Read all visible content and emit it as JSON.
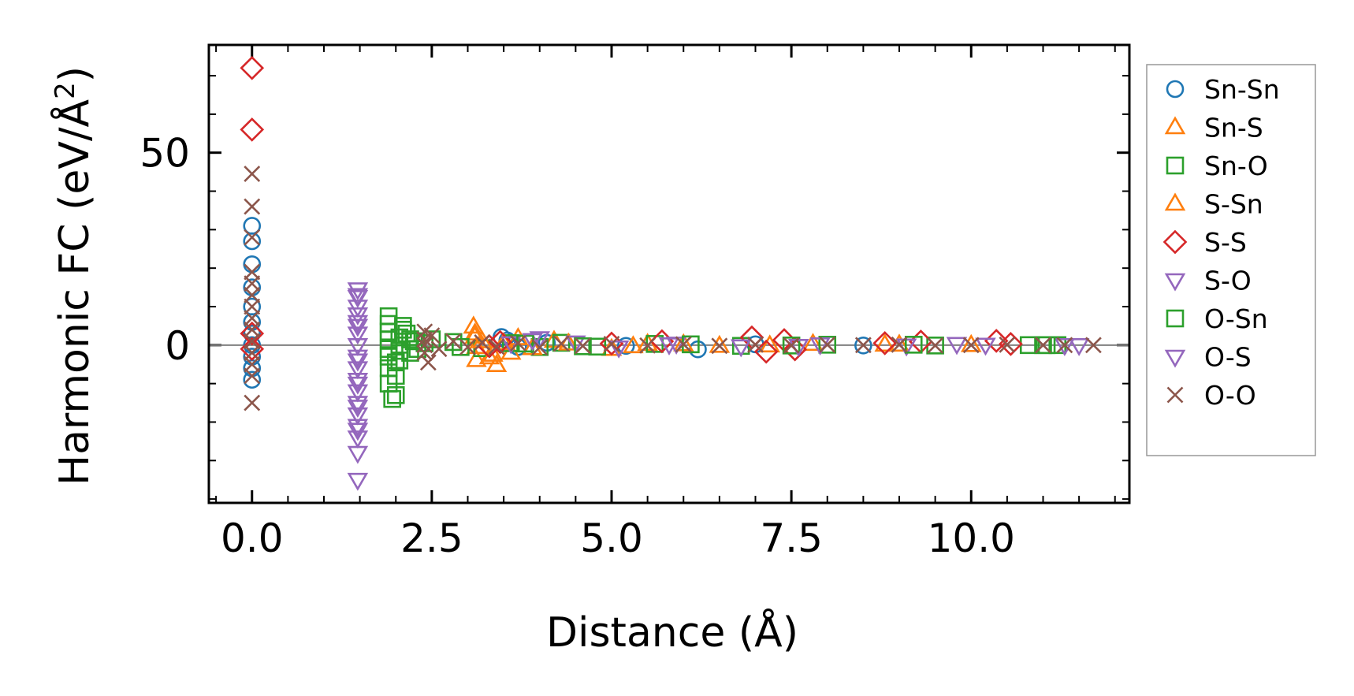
{
  "chart_data": {
    "type": "scatter",
    "title": "",
    "xlabel": "Distance (Å)",
    "ylabel": "Harmonic FC (eV/Å",
    "ylabel_sup": "2",
    "ylabel_close": ")",
    "xlim": [
      -0.6,
      12.2
    ],
    "ylim": [
      -41,
      78
    ],
    "xticks": [
      0.0,
      2.5,
      5.0,
      7.5,
      10.0
    ],
    "xtick_labels": [
      "0.0",
      "2.5",
      "5.0",
      "7.5",
      "10.0"
    ],
    "yticks": [
      0,
      50
    ],
    "ytick_labels": [
      "0",
      "50"
    ],
    "zero_line": true,
    "grid": false,
    "legend_position": "outside-right",
    "series": [
      {
        "name": "Sn-Sn",
        "marker": "circle",
        "color": "#1f77b4",
        "points": [
          [
            0,
            31
          ],
          [
            0,
            27
          ],
          [
            0,
            21
          ],
          [
            0,
            15
          ],
          [
            0,
            10
          ],
          [
            0,
            6
          ],
          [
            0,
            3
          ],
          [
            0,
            0
          ],
          [
            0,
            -3
          ],
          [
            0,
            -6
          ],
          [
            0,
            -9
          ],
          [
            3.47,
            2.1
          ],
          [
            3.55,
            1.2
          ],
          [
            3.7,
            -0.5
          ],
          [
            4.1,
            0.6
          ],
          [
            5.2,
            -0.2
          ],
          [
            6.2,
            -1.1
          ],
          [
            7.0,
            0.2
          ],
          [
            8.5,
            -0.1
          ]
        ]
      },
      {
        "name": "Sn-S",
        "marker": "triangle-up",
        "color": "#ff7f0e",
        "points": [
          [
            3.08,
            4.8
          ],
          [
            3.1,
            2.2
          ],
          [
            3.12,
            -0.5
          ],
          [
            3.12,
            -3.9
          ],
          [
            3.3,
            -3.2
          ],
          [
            3.4,
            -5.2
          ],
          [
            3.6,
            -2.0
          ],
          [
            3.7,
            1.8
          ],
          [
            4.2,
            1.1
          ],
          [
            5.0,
            -1.0
          ],
          [
            5.5,
            0.3
          ],
          [
            6.5,
            -0.2
          ],
          [
            7.8,
            0.3
          ],
          [
            9.0,
            0.1
          ]
        ]
      },
      {
        "name": "Sn-O",
        "marker": "square",
        "color": "#2ca02c",
        "points": [
          [
            1.9,
            7.5
          ],
          [
            1.9,
            5.5
          ],
          [
            1.9,
            3.5
          ],
          [
            1.9,
            1.5
          ],
          [
            1.9,
            -1
          ],
          [
            1.9,
            -3
          ],
          [
            1.9,
            -6
          ],
          [
            1.9,
            -10
          ],
          [
            1.95,
            -14
          ],
          [
            2.0,
            -13
          ],
          [
            2.0,
            -8
          ],
          [
            2.05,
            -4
          ],
          [
            2.05,
            2
          ],
          [
            2.1,
            5
          ],
          [
            2.15,
            3
          ],
          [
            2.2,
            -2
          ],
          [
            2.25,
            1
          ],
          [
            2.3,
            -1
          ],
          [
            2.5,
            1.5
          ],
          [
            2.8,
            0.8
          ],
          [
            3.2,
            -0.8
          ],
          [
            3.6,
            0.5
          ],
          [
            4.0,
            -0.5
          ],
          [
            4.3,
            0.6
          ],
          [
            4.8,
            -0.4
          ],
          [
            5.6,
            0.3
          ],
          [
            6.8,
            -0.2
          ],
          [
            8.0,
            0.1
          ],
          [
            9.5,
            -0.1
          ],
          [
            10.8,
            0
          ],
          [
            11.0,
            0
          ],
          [
            11.2,
            0
          ]
        ]
      },
      {
        "name": "S-Sn",
        "marker": "triangle-up",
        "color": "#ff7f0e",
        "points": [
          [
            3.1,
            3.0
          ],
          [
            3.2,
            1.0
          ],
          [
            3.35,
            -2.5
          ],
          [
            3.5,
            0.5
          ],
          [
            3.9,
            -0.8
          ],
          [
            4.4,
            0.4
          ],
          [
            5.3,
            -0.3
          ],
          [
            6.0,
            0.2
          ],
          [
            7.2,
            -0.1
          ],
          [
            8.8,
            0.1
          ],
          [
            10.0,
            0
          ]
        ]
      },
      {
        "name": "S-S",
        "marker": "diamond",
        "color": "#d62728",
        "points": [
          [
            0,
            72
          ],
          [
            0,
            56
          ],
          [
            0,
            3
          ],
          [
            0,
            -1
          ],
          [
            3.3,
            -0.3
          ],
          [
            3.45,
            0.8
          ],
          [
            5.0,
            0.4
          ],
          [
            5.7,
            1.0
          ],
          [
            6.95,
            2.0
          ],
          [
            7.15,
            -1.7
          ],
          [
            7.4,
            1.3
          ],
          [
            7.55,
            -1.1
          ],
          [
            8.8,
            0.5
          ],
          [
            9.3,
            0.9
          ],
          [
            10.35,
            1.1
          ],
          [
            10.55,
            0.3
          ]
        ]
      },
      {
        "name": "S-O",
        "marker": "triangle-down",
        "color": "#9467bd",
        "points": [
          [
            1.47,
            14.5
          ],
          [
            1.47,
            12.5
          ],
          [
            1.47,
            10
          ],
          [
            1.47,
            8
          ],
          [
            1.47,
            6
          ],
          [
            1.47,
            3
          ],
          [
            1.47,
            0
          ],
          [
            1.47,
            -3
          ],
          [
            1.47,
            -6
          ],
          [
            1.47,
            -9
          ],
          [
            1.47,
            -12
          ],
          [
            1.47,
            -15
          ],
          [
            1.47,
            -18
          ],
          [
            1.47,
            -21
          ],
          [
            1.47,
            -24
          ],
          [
            1.47,
            -28
          ],
          [
            1.47,
            -35
          ],
          [
            3.6,
            0.5
          ],
          [
            4.0,
            1.8
          ],
          [
            4.5,
            0.7
          ],
          [
            5.1,
            -0.6
          ],
          [
            5.9,
            0.4
          ],
          [
            6.8,
            -0.3
          ],
          [
            7.9,
            0.2
          ],
          [
            9.1,
            -0.1
          ],
          [
            9.8,
            0.3
          ],
          [
            11.3,
            0
          ]
        ]
      },
      {
        "name": "O-Sn",
        "marker": "square",
        "color": "#2ca02c",
        "points": [
          [
            2.0,
            -4.5
          ],
          [
            2.05,
            -1.5
          ],
          [
            2.1,
            4
          ],
          [
            2.2,
            1.5
          ],
          [
            2.4,
            0.5
          ],
          [
            2.9,
            -0.5
          ],
          [
            3.8,
            0.4
          ],
          [
            4.6,
            -0.3
          ],
          [
            6.1,
            0.2
          ],
          [
            7.5,
            -0.1
          ],
          [
            9.2,
            0.1
          ],
          [
            11.05,
            0
          ]
        ]
      },
      {
        "name": "O-S",
        "marker": "triangle-down",
        "color": "#9467bd",
        "points": [
          [
            1.47,
            13
          ],
          [
            1.47,
            5
          ],
          [
            1.47,
            -4
          ],
          [
            1.47,
            -10
          ],
          [
            1.47,
            -16
          ],
          [
            1.47,
            -22
          ],
          [
            3.9,
            1.3
          ],
          [
            5.8,
            0.2
          ],
          [
            7.6,
            -0.2
          ],
          [
            10.2,
            0.1
          ],
          [
            11.5,
            0
          ]
        ]
      },
      {
        "name": "O-O",
        "marker": "x",
        "color": "#8c564b",
        "points": [
          [
            0,
            44.5
          ],
          [
            0,
            36
          ],
          [
            0,
            28
          ],
          [
            0,
            19
          ],
          [
            0,
            16
          ],
          [
            0,
            13
          ],
          [
            0,
            10
          ],
          [
            0,
            7
          ],
          [
            0,
            4
          ],
          [
            0,
            1
          ],
          [
            0,
            -2
          ],
          [
            0,
            -5
          ],
          [
            0,
            -8
          ],
          [
            0,
            -15
          ],
          [
            2.4,
            3.5
          ],
          [
            2.4,
            1.5
          ],
          [
            2.4,
            0
          ],
          [
            2.4,
            -2
          ],
          [
            2.45,
            -4.5
          ],
          [
            2.5,
            2.5
          ],
          [
            2.6,
            -1
          ],
          [
            2.8,
            1
          ],
          [
            3.0,
            -0.5
          ],
          [
            3.2,
            0.7
          ],
          [
            3.4,
            -0.4
          ],
          [
            3.7,
            0.5
          ],
          [
            4.0,
            -0.6
          ],
          [
            4.3,
            0.4
          ],
          [
            4.6,
            -0.2
          ],
          [
            5.0,
            0.3
          ],
          [
            5.5,
            -0.1
          ],
          [
            6.0,
            0.2
          ],
          [
            6.5,
            -0.2
          ],
          [
            7.0,
            0.1
          ],
          [
            7.5,
            -0.1
          ],
          [
            8.0,
            0.1
          ],
          [
            8.5,
            0
          ],
          [
            9.0,
            0.1
          ],
          [
            9.5,
            -0.1
          ],
          [
            10.0,
            0
          ],
          [
            10.5,
            0.1
          ],
          [
            11.0,
            0
          ],
          [
            11.3,
            0
          ],
          [
            11.7,
            0
          ]
        ]
      }
    ]
  }
}
